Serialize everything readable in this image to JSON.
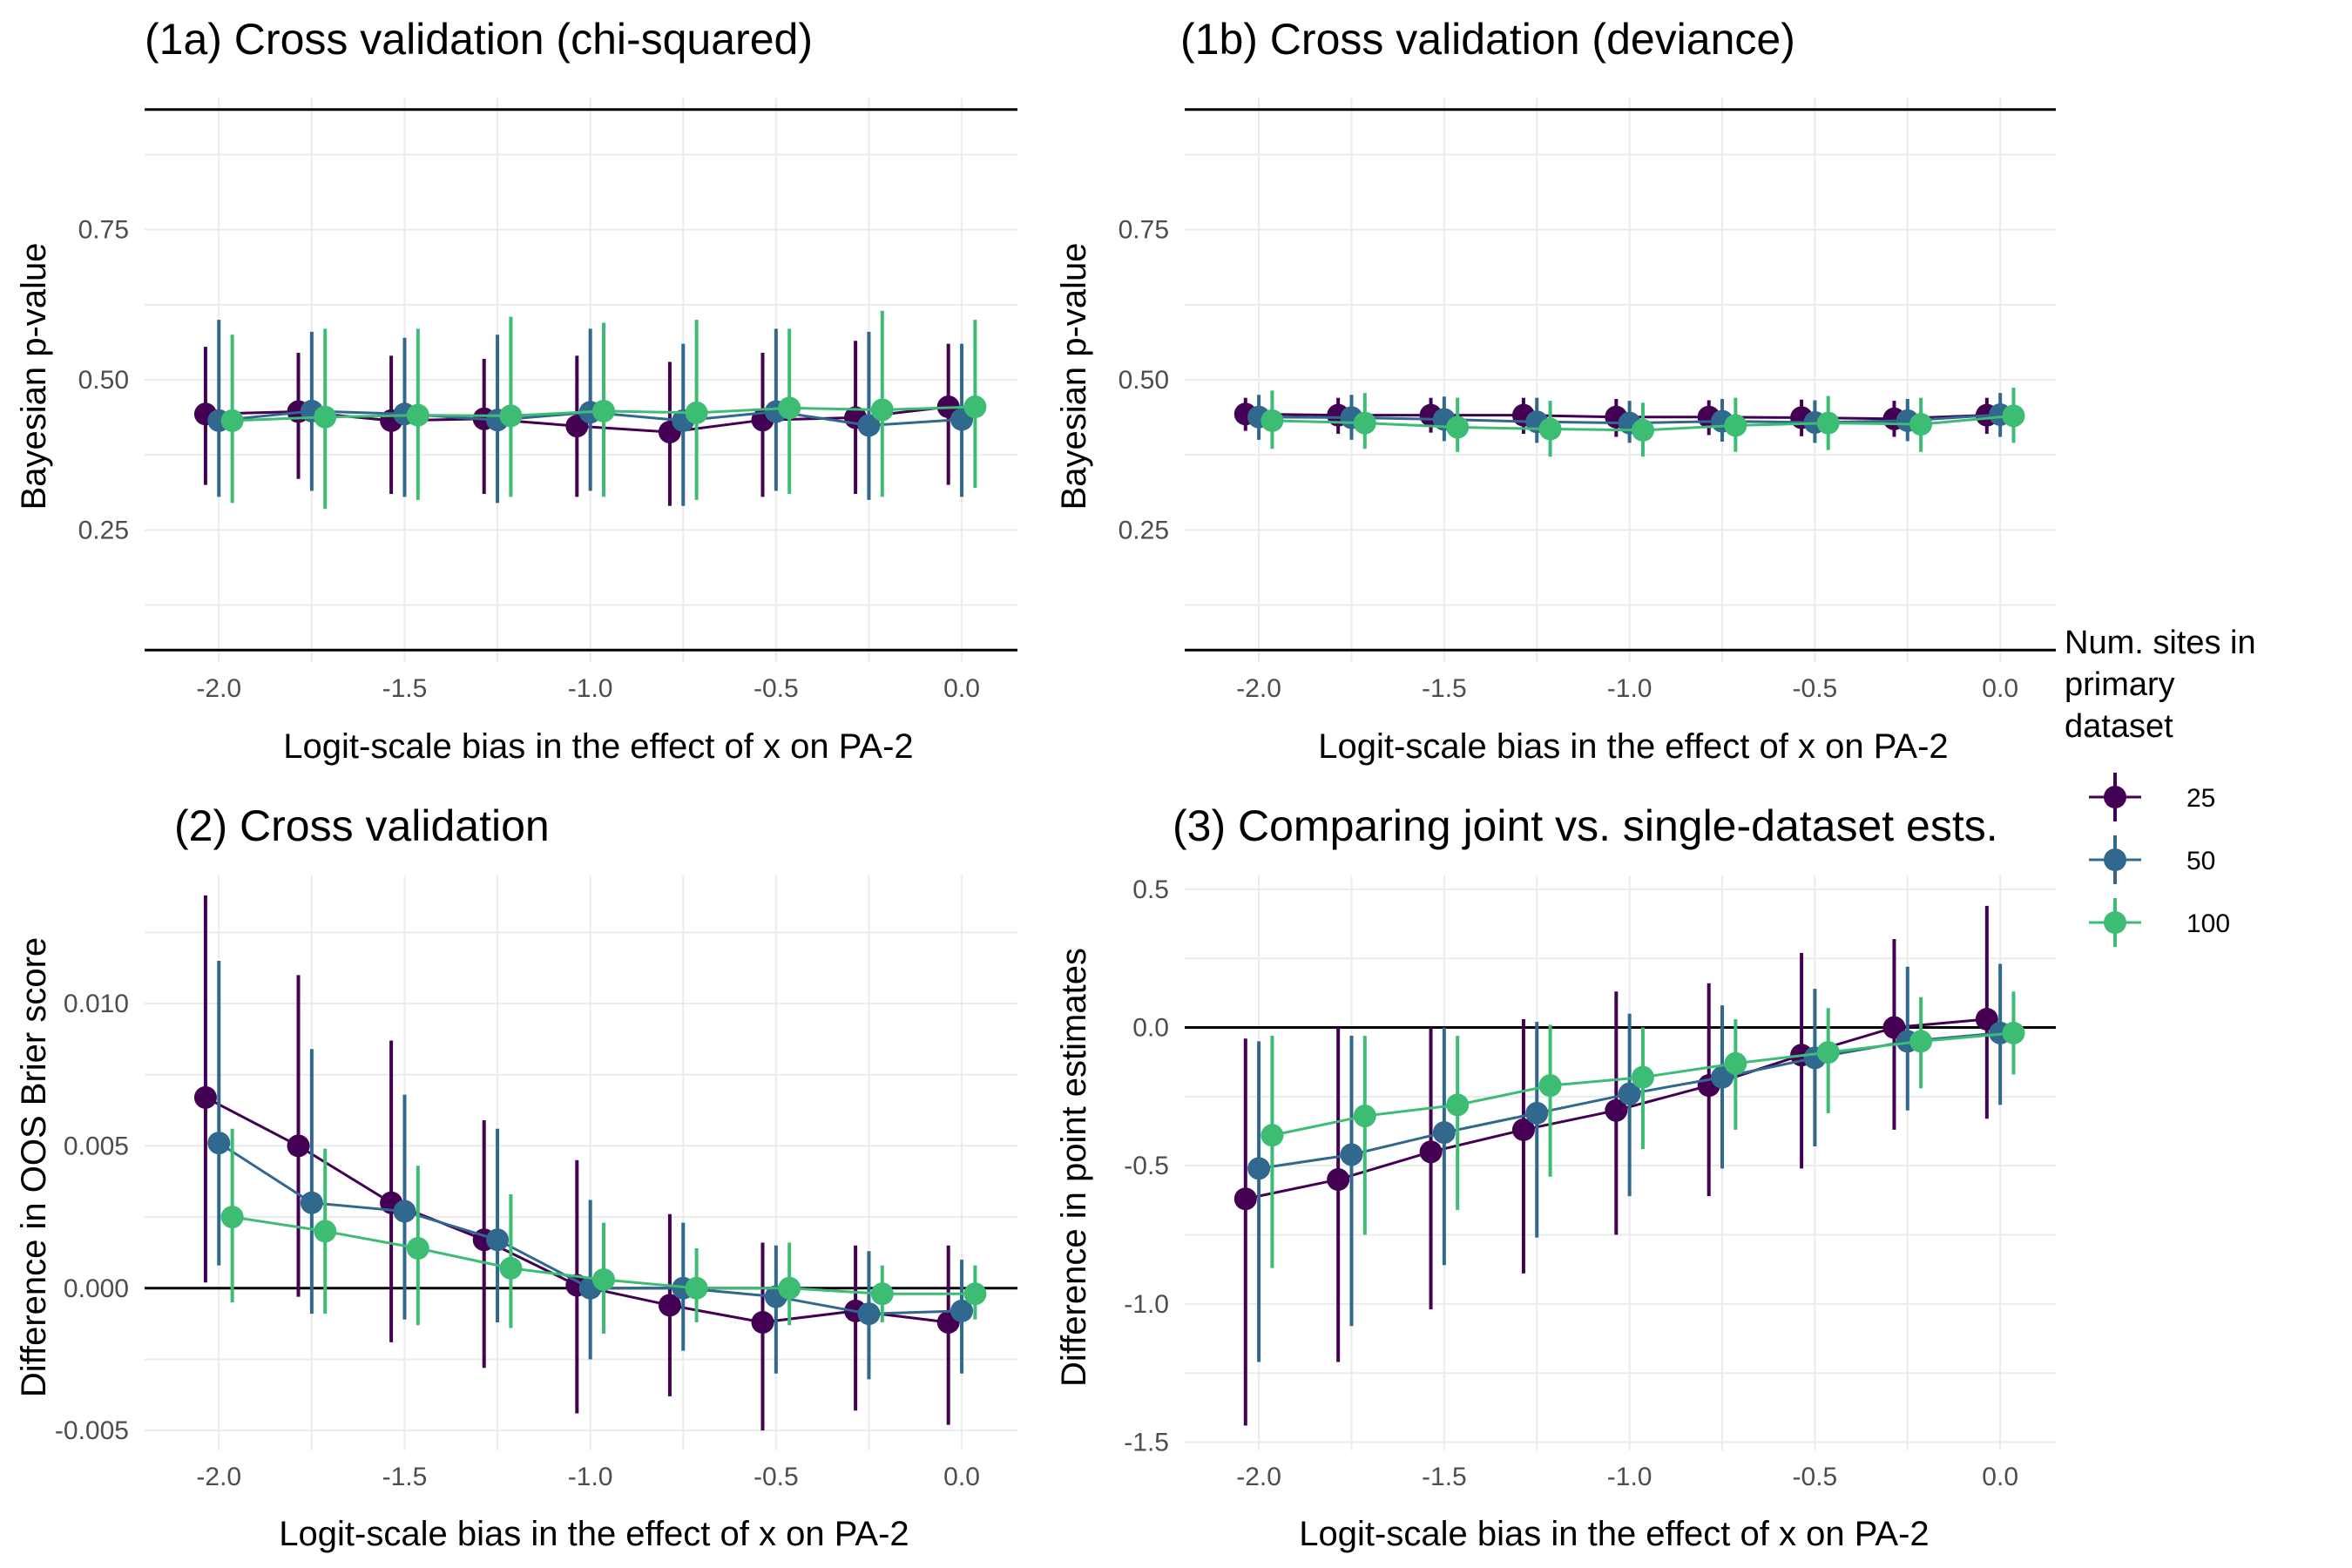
{
  "legend": {
    "title_lines": [
      "Num. sites in",
      "primary",
      "dataset"
    ],
    "entries": [
      {
        "label": "25",
        "color": "#440154"
      },
      {
        "label": "50",
        "color": "#31688e"
      },
      {
        "label": "100",
        "color": "#3dbc74"
      }
    ]
  },
  "chart_data": [
    {
      "type": "scatter",
      "title": "(1a) Cross validation (chi-squared)",
      "xlabel": "Logit-scale bias in the effect of x on PA-2",
      "ylabel": "Bayesian p-value",
      "x_ticks": [
        "-2.0",
        "-1.5",
        "-1.0",
        "-0.5",
        "0.0"
      ],
      "y_ticks": [
        "0.25",
        "0.50",
        "0.75"
      ],
      "xlim": [
        -2.2,
        0.15
      ],
      "ylim": [
        0.03,
        0.97
      ],
      "x": [
        -2.0,
        -1.75,
        -1.5,
        -1.25,
        -1.0,
        -0.75,
        -0.5,
        -0.25,
        0.0
      ],
      "hlines": [
        0.05,
        0.95
      ],
      "series": [
        {
          "name": "25",
          "color": "#440154",
          "values": [
            0.443,
            0.447,
            0.432,
            0.435,
            0.423,
            0.413,
            0.433,
            0.437,
            0.455
          ],
          "lower": [
            0.325,
            0.335,
            0.31,
            0.31,
            0.305,
            0.29,
            0.305,
            0.31,
            0.325
          ],
          "upper": [
            0.555,
            0.545,
            0.54,
            0.535,
            0.54,
            0.53,
            0.545,
            0.565,
            0.56
          ]
        },
        {
          "name": "50",
          "color": "#31688e",
          "values": [
            0.432,
            0.448,
            0.443,
            0.433,
            0.446,
            0.432,
            0.447,
            0.424,
            0.434
          ],
          "lower": [
            0.305,
            0.315,
            0.305,
            0.295,
            0.315,
            0.29,
            0.315,
            0.3,
            0.305
          ],
          "upper": [
            0.6,
            0.58,
            0.57,
            0.575,
            0.585,
            0.56,
            0.585,
            0.58,
            0.56
          ]
        },
        {
          "name": "100",
          "color": "#3dbc74",
          "values": [
            0.432,
            0.438,
            0.441,
            0.44,
            0.448,
            0.445,
            0.453,
            0.45,
            0.455
          ],
          "lower": [
            0.295,
            0.285,
            0.3,
            0.305,
            0.305,
            0.3,
            0.31,
            0.305,
            0.32
          ],
          "upper": [
            0.575,
            0.585,
            0.585,
            0.605,
            0.595,
            0.6,
            0.585,
            0.615,
            0.6
          ]
        }
      ]
    },
    {
      "type": "scatter",
      "title": "(1b) Cross validation (deviance)",
      "xlabel": "Logit-scale bias in the effect of x on PA-2",
      "ylabel": "Bayesian p-value",
      "x_ticks": [
        "-2.0",
        "-1.5",
        "-1.0",
        "-0.5",
        "0.0"
      ],
      "y_ticks": [
        "0.25",
        "0.50",
        "0.75"
      ],
      "xlim": [
        -2.2,
        0.15
      ],
      "ylim": [
        0.03,
        0.97
      ],
      "x": [
        -2.0,
        -1.75,
        -1.5,
        -1.25,
        -1.0,
        -0.75,
        -0.5,
        -0.25,
        0.0
      ],
      "hlines": [
        0.05,
        0.95
      ],
      "series": [
        {
          "name": "25",
          "color": "#440154",
          "values": [
            0.443,
            0.441,
            0.441,
            0.441,
            0.438,
            0.438,
            0.437,
            0.435,
            0.441
          ],
          "lower": [
            0.415,
            0.41,
            0.412,
            0.41,
            0.405,
            0.408,
            0.406,
            0.405,
            0.41
          ],
          "upper": [
            0.47,
            0.47,
            0.47,
            0.47,
            0.468,
            0.466,
            0.467,
            0.465,
            0.47
          ]
        },
        {
          "name": "50",
          "color": "#31688e",
          "values": [
            0.438,
            0.437,
            0.434,
            0.43,
            0.428,
            0.431,
            0.429,
            0.432,
            0.442
          ],
          "lower": [
            0.4,
            0.4,
            0.398,
            0.395,
            0.395,
            0.397,
            0.395,
            0.398,
            0.405
          ],
          "upper": [
            0.475,
            0.475,
            0.472,
            0.47,
            0.465,
            0.468,
            0.466,
            0.468,
            0.478
          ]
        },
        {
          "name": "100",
          "color": "#3dbc74",
          "values": [
            0.432,
            0.428,
            0.421,
            0.418,
            0.416,
            0.424,
            0.428,
            0.426,
            0.44
          ],
          "lower": [
            0.385,
            0.385,
            0.38,
            0.372,
            0.372,
            0.38,
            0.383,
            0.38,
            0.395
          ],
          "upper": [
            0.482,
            0.478,
            0.47,
            0.465,
            0.462,
            0.47,
            0.473,
            0.47,
            0.487
          ]
        }
      ]
    },
    {
      "type": "scatter",
      "title": "(2) Cross validation",
      "xlabel": "Logit-scale bias in the effect of x on PA-2",
      "ylabel": "Difference in OOS Brier score",
      "x_ticks": [
        "-2.0",
        "-1.5",
        "-1.0",
        "-0.5",
        "0.0"
      ],
      "y_ticks": [
        "-0.005",
        "0.000",
        "0.005",
        "0.010"
      ],
      "xlim": [
        -2.2,
        0.15
      ],
      "ylim": [
        -0.0057,
        0.0145
      ],
      "x": [
        -2.0,
        -1.75,
        -1.5,
        -1.25,
        -1.0,
        -0.75,
        -0.5,
        -0.25,
        0.0
      ],
      "hlines": [
        0.0
      ],
      "series": [
        {
          "name": "25",
          "color": "#440154",
          "values": [
            0.0067,
            0.005,
            0.003,
            0.0017,
            0.0001,
            -0.0006,
            -0.0012,
            -0.0008,
            -0.0012
          ],
          "lower": [
            0.0002,
            -0.0003,
            -0.0019,
            -0.0028,
            -0.0044,
            -0.0038,
            -0.005,
            -0.0043,
            -0.0048
          ],
          "upper": [
            0.0138,
            0.011,
            0.0087,
            0.0059,
            0.0045,
            0.0026,
            0.0016,
            0.0015,
            0.0015
          ]
        },
        {
          "name": "50",
          "color": "#31688e",
          "values": [
            0.0051,
            0.003,
            0.0027,
            0.0017,
            0.0,
            0.0,
            -0.0003,
            -0.0009,
            -0.0008
          ],
          "lower": [
            0.0008,
            -0.0009,
            -0.0011,
            -0.0012,
            -0.0025,
            -0.0022,
            -0.003,
            -0.0032,
            -0.003
          ],
          "upper": [
            0.0115,
            0.0084,
            0.0068,
            0.0056,
            0.0031,
            0.0023,
            0.0015,
            0.0013,
            0.001
          ]
        },
        {
          "name": "100",
          "color": "#3dbc74",
          "values": [
            0.0025,
            0.002,
            0.0014,
            0.0007,
            0.0003,
            0.0,
            0.0,
            -0.0002,
            -0.0002
          ],
          "lower": [
            -0.0005,
            -0.0009,
            -0.0013,
            -0.0014,
            -0.0016,
            -0.0012,
            -0.0013,
            -0.0012,
            -0.0011
          ],
          "upper": [
            0.0056,
            0.0049,
            0.0043,
            0.0033,
            0.0023,
            0.0014,
            0.0016,
            0.0008,
            0.0008
          ]
        }
      ]
    },
    {
      "type": "scatter",
      "title": "(3) Comparing joint vs. single-dataset ests.",
      "xlabel": "Logit-scale bias in the effect of x on PA-2",
      "ylabel": "Difference in point estimates",
      "x_ticks": [
        "-2.0",
        "-1.5",
        "-1.0",
        "-0.5",
        "0.0"
      ],
      "y_ticks": [
        "-1.5",
        "-1.0",
        "-0.5",
        "0.0",
        "0.5"
      ],
      "xlim": [
        -2.2,
        0.15
      ],
      "ylim": [
        -1.53,
        0.55
      ],
      "x": [
        -2.0,
        -1.75,
        -1.5,
        -1.25,
        -1.0,
        -0.75,
        -0.5,
        -0.25,
        0.0
      ],
      "hlines": [
        0.0
      ],
      "series": [
        {
          "name": "25",
          "color": "#440154",
          "values": [
            -0.62,
            -0.55,
            -0.45,
            -0.37,
            -0.3,
            -0.21,
            -0.1,
            0.0,
            0.03
          ],
          "lower": [
            -1.44,
            -1.21,
            -1.02,
            -0.89,
            -0.75,
            -0.61,
            -0.51,
            -0.37,
            -0.33
          ],
          "upper": [
            -0.04,
            0.0,
            0.0,
            0.03,
            0.13,
            0.16,
            0.27,
            0.32,
            0.44
          ]
        },
        {
          "name": "50",
          "color": "#31688e",
          "values": [
            -0.51,
            -0.46,
            -0.38,
            -0.31,
            -0.24,
            -0.18,
            -0.11,
            -0.05,
            -0.02
          ],
          "lower": [
            -1.21,
            -1.08,
            -0.86,
            -0.76,
            -0.61,
            -0.51,
            -0.43,
            -0.3,
            -0.28
          ],
          "upper": [
            -0.05,
            -0.03,
            0.0,
            0.02,
            0.05,
            0.08,
            0.14,
            0.22,
            0.23
          ]
        },
        {
          "name": "100",
          "color": "#3dbc74",
          "values": [
            -0.39,
            -0.32,
            -0.28,
            -0.21,
            -0.18,
            -0.13,
            -0.09,
            -0.05,
            -0.02
          ],
          "lower": [
            -0.87,
            -0.75,
            -0.66,
            -0.54,
            -0.44,
            -0.37,
            -0.31,
            -0.22,
            -0.17
          ],
          "upper": [
            -0.03,
            -0.03,
            -0.03,
            0.01,
            0.0,
            0.03,
            0.07,
            0.11,
            0.13
          ]
        }
      ]
    }
  ]
}
